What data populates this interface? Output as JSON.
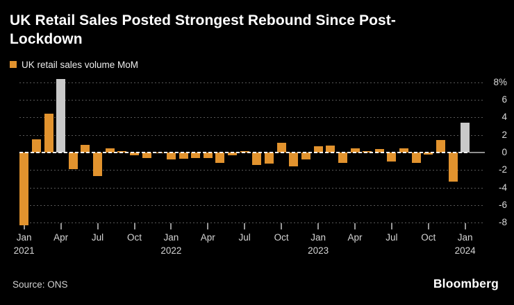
{
  "header": {
    "title": "UK Retail Sales Posted Strongest Rebound Since Post-Lockdown"
  },
  "legend": {
    "label": "UK retail sales volume MoM"
  },
  "footer": {
    "source": "Source: ONS",
    "brand": "Bloomberg"
  },
  "chart_data": {
    "type": "bar",
    "title": "UK Retail Sales Posted Strongest Rebound Since Post-Lockdown",
    "legend": "UK retail sales volume MoM",
    "ylabel": "%",
    "ylim": [
      -8.7,
      8.6
    ],
    "grid": "dotted horizontal, dashed white zero line",
    "legend_position": "top-left",
    "colors": {
      "bar": "#E2932E",
      "highlight": "#C9C9C9",
      "background": "#000000",
      "gridline": "#585858",
      "zero_line": "#F5F5F5",
      "axis_text": "#DADADA"
    },
    "yticks": [
      {
        "v": 8,
        "label": "8%"
      },
      {
        "v": 6,
        "label": "6"
      },
      {
        "v": 4,
        "label": "4"
      },
      {
        "v": 2,
        "label": "2"
      },
      {
        "v": 0,
        "label": "0"
      },
      {
        "v": -2,
        "label": "-2"
      },
      {
        "v": -4,
        "label": "-4"
      },
      {
        "v": -6,
        "label": "-6"
      },
      {
        "v": -8,
        "label": "-8"
      }
    ],
    "months": [
      {
        "m": "Jan 2021",
        "v": -8.3
      },
      {
        "m": "Feb 2021",
        "v": 1.5
      },
      {
        "m": "Mar 2021",
        "v": 4.4
      },
      {
        "m": "Apr 2021",
        "v": 8.4,
        "color": "highlight"
      },
      {
        "m": "May 2021",
        "v": -1.9
      },
      {
        "m": "Jun 2021",
        "v": 0.9
      },
      {
        "m": "Jul 2021",
        "v": -2.7
      },
      {
        "m": "Aug 2021",
        "v": 0.5
      },
      {
        "m": "Sep 2021",
        "v": 0.2
      },
      {
        "m": "Oct 2021",
        "v": -0.3
      },
      {
        "m": "Nov 2021",
        "v": -0.6
      },
      {
        "m": "Dec 2021",
        "v": -0.1
      },
      {
        "m": "Jan 2022",
        "v": -0.8
      },
      {
        "m": "Feb 2022",
        "v": -0.7
      },
      {
        "m": "Mar 2022",
        "v": -0.6
      },
      {
        "m": "Apr 2022",
        "v": -0.6
      },
      {
        "m": "May 2022",
        "v": -1.2
      },
      {
        "m": "Jun 2022",
        "v": -0.3
      },
      {
        "m": "Jul 2022",
        "v": 0.2
      },
      {
        "m": "Aug 2022",
        "v": -1.4
      },
      {
        "m": "Sep 2022",
        "v": -1.3
      },
      {
        "m": "Oct 2022",
        "v": 1.1
      },
      {
        "m": "Nov 2022",
        "v": -1.6
      },
      {
        "m": "Dec 2022",
        "v": -0.8
      },
      {
        "m": "Jan 2023",
        "v": 0.7
      },
      {
        "m": "Feb 2023",
        "v": 0.8
      },
      {
        "m": "Mar 2023",
        "v": -1.2
      },
      {
        "m": "Apr 2023",
        "v": 0.5
      },
      {
        "m": "May 2023",
        "v": 0.2
      },
      {
        "m": "Jun 2023",
        "v": 0.4
      },
      {
        "m": "Jul 2023",
        "v": -1.0
      },
      {
        "m": "Aug 2023",
        "v": 0.5
      },
      {
        "m": "Sep 2023",
        "v": -1.2
      },
      {
        "m": "Oct 2023",
        "v": -0.2
      },
      {
        "m": "Nov 2023",
        "v": 1.4
      },
      {
        "m": "Dec 2023",
        "v": -3.3
      },
      {
        "m": "Jan 2024",
        "v": 3.4,
        "color": "highlight"
      }
    ],
    "xticks": [
      {
        "i": 0,
        "label": "Jan",
        "year": "2021"
      },
      {
        "i": 3,
        "label": "Apr"
      },
      {
        "i": 6,
        "label": "Jul"
      },
      {
        "i": 9,
        "label": "Oct"
      },
      {
        "i": 12,
        "label": "Jan",
        "year": "2022"
      },
      {
        "i": 15,
        "label": "Apr"
      },
      {
        "i": 18,
        "label": "Jul"
      },
      {
        "i": 21,
        "label": "Oct"
      },
      {
        "i": 24,
        "label": "Jan",
        "year": "2023"
      },
      {
        "i": 27,
        "label": "Apr"
      },
      {
        "i": 30,
        "label": "Jul"
      },
      {
        "i": 33,
        "label": "Oct"
      },
      {
        "i": 36,
        "label": "Jan",
        "year": "2024"
      }
    ]
  }
}
